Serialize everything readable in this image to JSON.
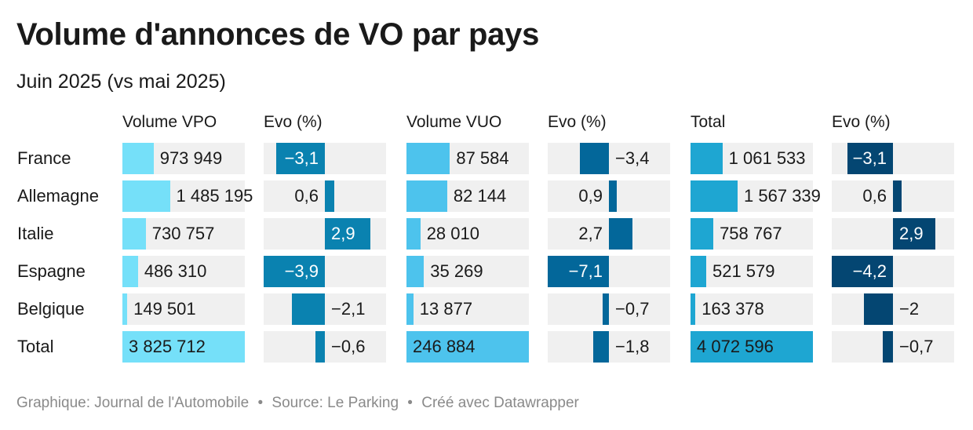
{
  "title": "Volume d'annonces de VO par pays",
  "subtitle": "Juin 2025 (vs mai 2025)",
  "footer": {
    "graphique": "Graphique: Journal de l'Automobile",
    "source": "Source: Le Parking",
    "cree": "Créé avec Datawrapper",
    "sep": "•"
  },
  "colors": {
    "cell_bg": "#f0f0f0",
    "vpo": "#75e0f9",
    "vuo": "#4dc3ed",
    "total": "#1ea6d2",
    "evo_vpo": "#0a82b0",
    "evo_vuo": "#03679a",
    "evo_total": "#044672"
  },
  "chart_data": {
    "type": "table",
    "columns": [
      "Volume VPO",
      "Evo (%)",
      "Volume VUO",
      "Evo (%)",
      "Total",
      "Evo (%)"
    ],
    "rows": [
      {
        "pays": "France",
        "vpo": 973949,
        "vpo_label": "973 949",
        "evo_vpo": -3.1,
        "evo_vpo_label": "−3,1",
        "vuo": 87584,
        "vuo_label": "87 584",
        "evo_vuo": -3.4,
        "evo_vuo_label": "−3,4",
        "total": 1061533,
        "total_label": "1 061 533",
        "evo_total": -3.1,
        "evo_total_label": "−3,1"
      },
      {
        "pays": "Allemagne",
        "vpo": 1485195,
        "vpo_label": "1 485 195",
        "evo_vpo": 0.6,
        "evo_vpo_label": "0,6",
        "vuo": 82144,
        "vuo_label": "82 144",
        "evo_vuo": 0.9,
        "evo_vuo_label": "0,9",
        "total": 1567339,
        "total_label": "1 567 339",
        "evo_total": 0.6,
        "evo_total_label": "0,6"
      },
      {
        "pays": "Italie",
        "vpo": 730757,
        "vpo_label": "730 757",
        "evo_vpo": 2.9,
        "evo_vpo_label": "2,9",
        "vuo": 28010,
        "vuo_label": "28 010",
        "evo_vuo": 2.7,
        "evo_vuo_label": "2,7",
        "total": 758767,
        "total_label": "758 767",
        "evo_total": 2.9,
        "evo_total_label": "2,9"
      },
      {
        "pays": "Espagne",
        "vpo": 486310,
        "vpo_label": "486 310",
        "evo_vpo": -3.9,
        "evo_vpo_label": "−3,9",
        "vuo": 35269,
        "vuo_label": "35 269",
        "evo_vuo": -7.1,
        "evo_vuo_label": "−7,1",
        "total": 521579,
        "total_label": "521 579",
        "evo_total": -4.2,
        "evo_total_label": "−4,2"
      },
      {
        "pays": "Belgique",
        "vpo": 149501,
        "vpo_label": "149 501",
        "evo_vpo": -2.1,
        "evo_vpo_label": "−2,1",
        "vuo": 13877,
        "vuo_label": "13 877",
        "evo_vuo": -0.7,
        "evo_vuo_label": "−0,7",
        "total": 163378,
        "total_label": "163 378",
        "evo_total": -2,
        "evo_total_label": "−2"
      },
      {
        "pays": "Total",
        "vpo": 3825712,
        "vpo_label": "3 825 712",
        "evo_vpo": -0.6,
        "evo_vpo_label": "−0,6",
        "vuo": 246884,
        "vuo_label": "246 884",
        "evo_vuo": -1.8,
        "evo_vuo_label": "−1,8",
        "total": 4072596,
        "total_label": "4 072 596",
        "evo_total": -0.7,
        "evo_total_label": "−0,7"
      }
    ]
  }
}
